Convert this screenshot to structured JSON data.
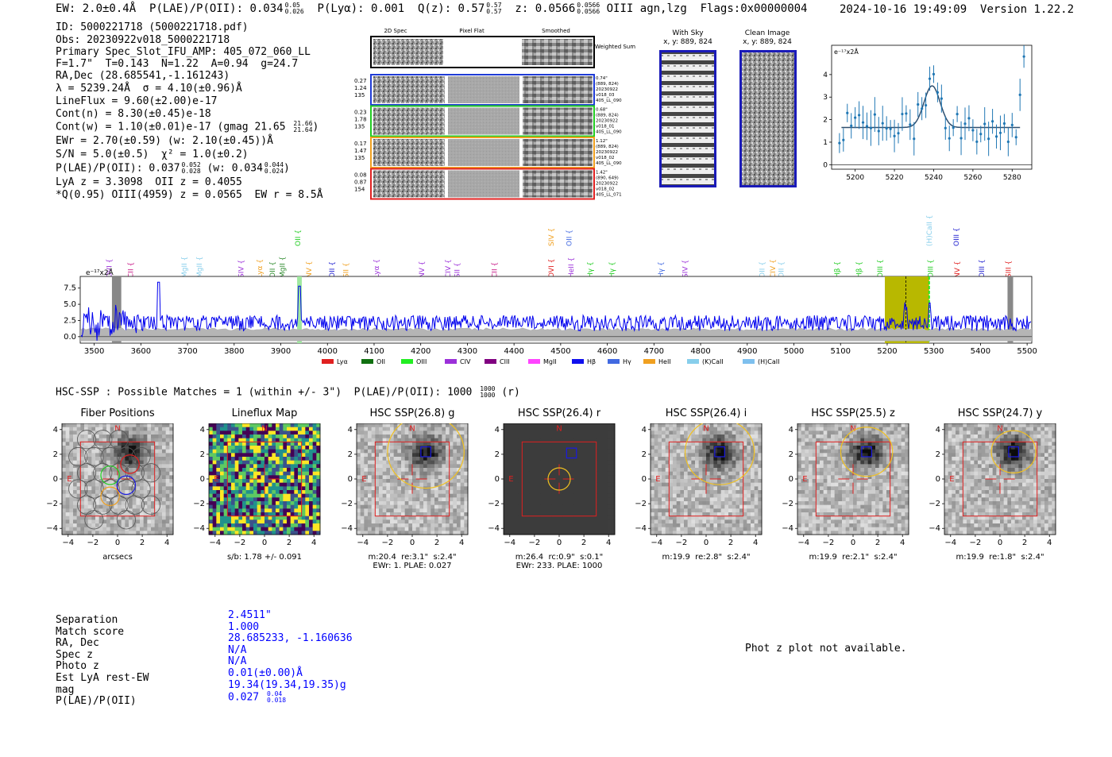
{
  "header": {
    "ew": "EW: 2.0±0.4Å",
    "plae_label": "P(LAE)/P(OII): 0.034",
    "plae_hi": "0.05",
    "plae_lo": "0.026",
    "plya": "P(Lyα): 0.001",
    "qz_label": "Q(z): 0.57",
    "qz_hi": "0.57",
    "qz_lo": "0.57",
    "z_label": "z: 0.0566",
    "z_hi": "0.0566",
    "z_lo": "0.0566",
    "z_line": "OIII",
    "flags_text": "agn,lzg  Flags:0x00000004",
    "timestamp": "2024-10-16 19:49:09",
    "version": "Version 1.22.2"
  },
  "info": {
    "id": "ID: 5000221718 (5000221718.pdf)",
    "obs": "Obs: 20230922v018_5000221718",
    "primary": "Primary Spec_Slot_IFU_AMP: 405_072_060_LL",
    "fta": "F=1.7\"  T=0.143  N=1.22  A=0.94  g=24.7",
    "radec": "RA,Dec (28.685541,-1.161243)",
    "lambda": "λ = 5239.24Å  σ = 4.10(±0.96)Å",
    "lineflux": "LineFlux = 9.60(±2.00)e-17",
    "contn": "Cont(n) = 8.30(±0.45)e-18",
    "contw": "Cont(w) = 1.10(±0.01)e-17 (gmag 21.65",
    "contw_hi": "21.66",
    "contw_lo": "21.64",
    "ewr": "EWr = 2.70(±0.59) (w: 2.10(±0.45))Å",
    "sn": "S/N = 5.0(±0.5)  χ² = 1.0(±0.2)",
    "plae": "P(LAE)/P(OII): 0.037",
    "plae_hi": "0.052",
    "plae_lo": "0.028",
    "plae_w": "(w: 0.034",
    "plae_w_hi": "0.044",
    "plae_w_lo": "0.024",
    "lya": "LyA z = 3.3098  OII z = 0.4055",
    "qline": "*Q(0.95) OIII(4959) z = 0.0565  EW r = 8.5Å"
  },
  "cutouts": {
    "col_titles": [
      "2D Spec",
      "Pixel Flat",
      "Smoothed"
    ],
    "weighted_sum": "Weighted Sum",
    "rows": [
      {
        "left": [
          "0.27",
          "1.24",
          "135"
        ],
        "right": [
          "0.74\"",
          "(889, 824)",
          "20230922",
          "v018_03",
          "405_LL_090"
        ],
        "color": "#1f3bd6"
      },
      {
        "left": [
          "0.23",
          "1.78",
          "135"
        ],
        "right": [
          "0.68\"",
          "(889, 824)",
          "20230922",
          "v018_01",
          "405_LL_090"
        ],
        "color": "#22cc22"
      },
      {
        "left": [
          "0.17",
          "1.47",
          "135"
        ],
        "right": [
          "1.12\"",
          "(889, 824)",
          "20230922",
          "v018_02",
          "405_LL_090"
        ],
        "color": "#f0a020"
      },
      {
        "left": [
          "0.08",
          "0.87",
          "154"
        ],
        "right": [
          "1.42\"",
          "(890, 649)",
          "20230922",
          "v018_02",
          "405_LL_071"
        ],
        "color": "#e02020"
      }
    ]
  },
  "sky": {
    "with_sky": "With Sky",
    "with_sky_xy": "x, y: 889, 824",
    "clean": "Clean Image",
    "clean_xy": "x, y: 889, 824"
  },
  "zoom_plot": {
    "unit_label": "e⁻¹⁷x2Å",
    "x_ticks": [
      "5200",
      "5220",
      "5240",
      "5260",
      "5280"
    ],
    "y_ticks": [
      "0",
      "1",
      "2",
      "3",
      "4"
    ]
  },
  "spectrum": {
    "unit_label": "e⁻¹⁷x2Å",
    "y_ticks": [
      "0.0",
      "2.5",
      "5.0",
      "7.5"
    ],
    "x_ticks": [
      "3500",
      "3600",
      "3700",
      "3800",
      "3900",
      "4000",
      "4100",
      "4200",
      "4300",
      "4400",
      "4500",
      "4600",
      "4700",
      "4800",
      "4900",
      "5000",
      "5100",
      "5200",
      "5300",
      "5400",
      "5500"
    ],
    "line_labels": [
      {
        "t": "OVI",
        "c": "#9b30d9",
        "w": 3532,
        "top": false
      },
      {
        "t": "CII",
        "c": "#c71585",
        "w": 3578,
        "top": false
      },
      {
        "t": "MgII",
        "c": "#87ceeb",
        "w": 3693,
        "top": false
      },
      {
        "t": "MgII",
        "c": "#87ceeb",
        "w": 3725,
        "top": false
      },
      {
        "t": "SIV",
        "c": "#9b30d9",
        "w": 3815,
        "top": false
      },
      {
        "t": "Lyα",
        "c": "#f0a020",
        "w": 3855,
        "top": false
      },
      {
        "t": "OII",
        "c": "#2e8b2e",
        "w": 3882,
        "top": false
      },
      {
        "t": "MgII",
        "c": "#2e8b2e",
        "w": 3903,
        "top": false
      },
      {
        "t": "OII",
        "c": "#22cc22",
        "w": 3937,
        "top": true
      },
      {
        "t": "NV",
        "c": "#f0a020",
        "w": 3960,
        "top": false
      },
      {
        "t": "OII",
        "c": "#2020d0",
        "w": 4010,
        "top": false
      },
      {
        "t": "SII",
        "c": "#f0a020",
        "w": 4040,
        "top": false
      },
      {
        "t": "Lyα",
        "c": "#9b30d9",
        "w": 4105,
        "top": false
      },
      {
        "t": "NV",
        "c": "#9b30d9",
        "w": 4202,
        "top": false
      },
      {
        "t": "CIV",
        "c": "#9b30d9",
        "w": 4258,
        "top": false
      },
      {
        "t": "SII",
        "c": "#9b30d9",
        "w": 4278,
        "top": false
      },
      {
        "t": "CII",
        "c": "#c71585",
        "w": 4358,
        "top": false
      },
      {
        "t": "SIV",
        "c": "#f0a020",
        "w": 4480,
        "top": true
      },
      {
        "t": "OII",
        "c": "#4169e1",
        "w": 4518,
        "top": true
      },
      {
        "t": "OVI",
        "c": "#e02020",
        "w": 4480,
        "top": false
      },
      {
        "t": "HeII",
        "c": "#9b30d9",
        "w": 4522,
        "top": false
      },
      {
        "t": "Hγ",
        "c": "#22cc22",
        "w": 4563,
        "top": false
      },
      {
        "t": "Hγ",
        "c": "#22cc22",
        "w": 4610,
        "top": false
      },
      {
        "t": "Hγ",
        "c": "#4169e1",
        "w": 4715,
        "top": false
      },
      {
        "t": "SIV",
        "c": "#9b30d9",
        "w": 4767,
        "top": false
      },
      {
        "t": "OII",
        "c": "#87ceeb",
        "w": 4932,
        "top": false
      },
      {
        "t": "CIV",
        "c": "#f0a020",
        "w": 4955,
        "top": false
      },
      {
        "t": "OII",
        "c": "#87ceeb",
        "w": 4973,
        "top": false
      },
      {
        "t": "Hβ",
        "c": "#22cc22",
        "w": 5093,
        "top": false
      },
      {
        "t": "Hβ",
        "c": "#22cc22",
        "w": 5140,
        "top": false
      },
      {
        "t": "OIII",
        "c": "#22cc22",
        "w": 5185,
        "top": false
      },
      {
        "t": "(H)CaII",
        "c": "#87ceeb",
        "w": 5290,
        "top": true
      },
      {
        "t": "OIII",
        "c": "#2020d0",
        "w": 5348,
        "top": true
      },
      {
        "t": "OIII",
        "c": "#22cc22",
        "w": 5293,
        "top": false
      },
      {
        "t": "NV",
        "c": "#e02020",
        "w": 5350,
        "top": false
      },
      {
        "t": "OIII",
        "c": "#2020d0",
        "w": 5403,
        "top": false
      },
      {
        "t": "SIII",
        "c": "#e02020",
        "w": 5460,
        "top": false
      }
    ],
    "legend": [
      {
        "label": "Lyα",
        "color": "#e02020"
      },
      {
        "label": "OII",
        "color": "#107010"
      },
      {
        "label": "OIII",
        "color": "#22ee22"
      },
      {
        "label": "CIV",
        "color": "#9b30d9"
      },
      {
        "label": "CIII",
        "color": "#800080"
      },
      {
        "label": "MgII",
        "color": "#ff44ff"
      },
      {
        "label": "Hβ",
        "color": "#1010ee"
      },
      {
        "label": "Hγ",
        "color": "#4169e1"
      },
      {
        "label": "HeII",
        "color": "#f0a020"
      },
      {
        "label": "(K)CaII",
        "color": "#87ceeb"
      },
      {
        "label": "(H)CaII",
        "color": "#7ec0ee"
      }
    ]
  },
  "hsc": {
    "summary": "HSC-SSP : Possible Matches = 1 (within +/- 3\")  P(LAE)/P(OII): 1000",
    "summary_hi": "1000",
    "summary_lo": "1000",
    "summary_end": "(r)",
    "panels": [
      {
        "title": "Fiber Positions",
        "caption": "arcsecs"
      },
      {
        "title": "Lineflux Map",
        "caption": "s/b: 1.78 +/- 0.091"
      },
      {
        "title": "HSC SSP(26.8) g",
        "caption": "m:20.4  re:3.1\"  s:2.4\"\nEWr: 1. PLAE: 0.027"
      },
      {
        "title": "HSC SSP(26.4) r",
        "caption": "m:26.4  rc:0.9\"  s:0.1\"\nEWr: 233. PLAE: 1000"
      },
      {
        "title": "HSC SSP(26.4) i",
        "caption": "m:19.9  re:2.8\"  s:2.4\""
      },
      {
        "title": "HSC SSP(25.5) z",
        "caption": "m:19.9  re:2.1\"  s:2.4\""
      },
      {
        "title": "HSC SSP(24.7) y",
        "caption": "m:19.9  re:1.8\"  s:2.4\""
      }
    ],
    "axis_ticks": [
      "−4",
      "−2",
      "0",
      "2",
      "4"
    ],
    "north": "N",
    "east": "E"
  },
  "match": {
    "labels": [
      "Separation",
      "Match score",
      "RA, Dec",
      "Spec z",
      "Photo z",
      "Est LyA rest-EW",
      "mag",
      "P(LAE)/P(OII)"
    ],
    "values": [
      "2.4511\"",
      "1.000",
      "28.685233, -1.160636",
      "N/A",
      "N/A",
      "0.01(±0.00)Å",
      "19.34(19.34,19.35)g",
      "0.027"
    ],
    "plae_hi": "0.04",
    "plae_lo": "0.018",
    "photz_note": "Phot z plot not available."
  },
  "colors": {
    "spectrum": "#0000ee",
    "fit": "#2f4f6f",
    "yellow_band": "#b8b800"
  }
}
